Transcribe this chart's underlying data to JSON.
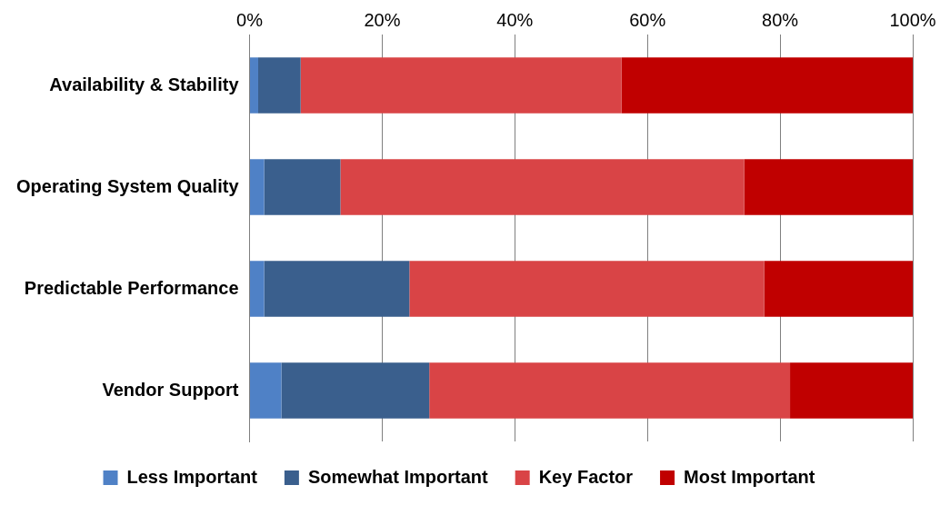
{
  "chart_data": {
    "type": "bar",
    "orientation": "horizontal",
    "stacked": true,
    "categories": [
      "Availability & Stability",
      "Operating System Quality",
      "Predictable Performance",
      "Vendor Support"
    ],
    "series": [
      {
        "name": "Less Important",
        "color": "#4f81c6",
        "values": [
          1.3,
          2.2,
          2.2,
          4.8
        ]
      },
      {
        "name": "Somewhat Important",
        "color": "#3a5f8d",
        "values": [
          6.4,
          11.5,
          21.9,
          22.3
        ]
      },
      {
        "name": "Key Factor",
        "color": "#d94446",
        "values": [
          48.4,
          60.9,
          53.5,
          54.4
        ]
      },
      {
        "name": "Most Important",
        "color": "#c00000",
        "values": [
          43.9,
          25.4,
          22.4,
          18.5
        ]
      }
    ],
    "xlim": [
      0,
      100
    ],
    "xticks": [
      {
        "value": 0,
        "label": "0%"
      },
      {
        "value": 20,
        "label": "20%"
      },
      {
        "value": 40,
        "label": "40%"
      },
      {
        "value": 60,
        "label": "60%"
      },
      {
        "value": 80,
        "label": "80%"
      },
      {
        "value": 100,
        "label": "100%"
      }
    ],
    "grid": "x",
    "legend": "bottom"
  }
}
